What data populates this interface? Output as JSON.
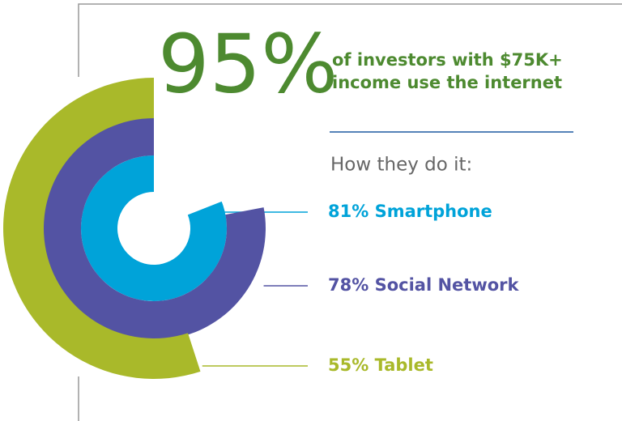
{
  "chart_data": {
    "type": "radial-bar",
    "headline": "95%",
    "headline_text": [
      "of investors with $75K+",
      "income use the internet"
    ],
    "subtitle": "How they do it:",
    "categories": [
      "Smartphone",
      "Social Network",
      "Tablet"
    ],
    "values": [
      81,
      78,
      55
    ],
    "value_labels": [
      "81%",
      "78%",
      "55%"
    ],
    "colors": [
      "#00a3d9",
      "#5353a3",
      "#a9b92a"
    ],
    "headline_color": "#4d8a30"
  }
}
